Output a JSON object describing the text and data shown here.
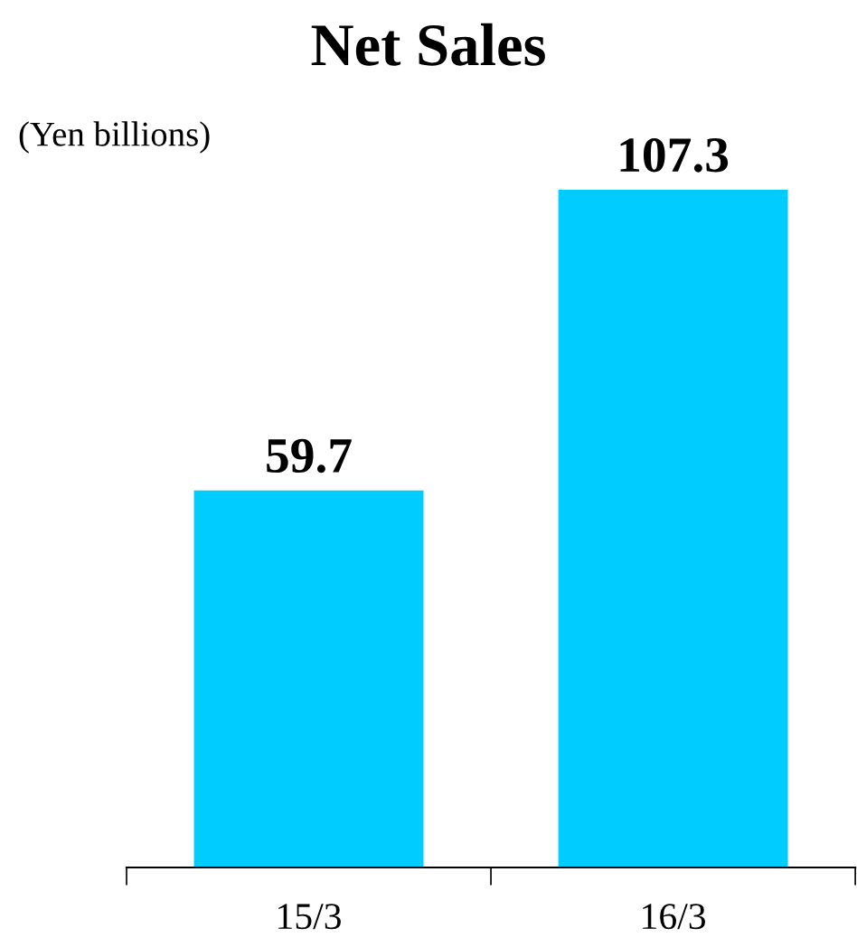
{
  "chart_data": {
    "type": "bar",
    "title": "Net Sales",
    "ylabel": "(Yen billions)",
    "categories": [
      "15/3",
      "16/3"
    ],
    "values": [
      59.7,
      107.3
    ],
    "color": "#00ccff",
    "data_labels": true,
    "grid": false,
    "legend": false
  }
}
